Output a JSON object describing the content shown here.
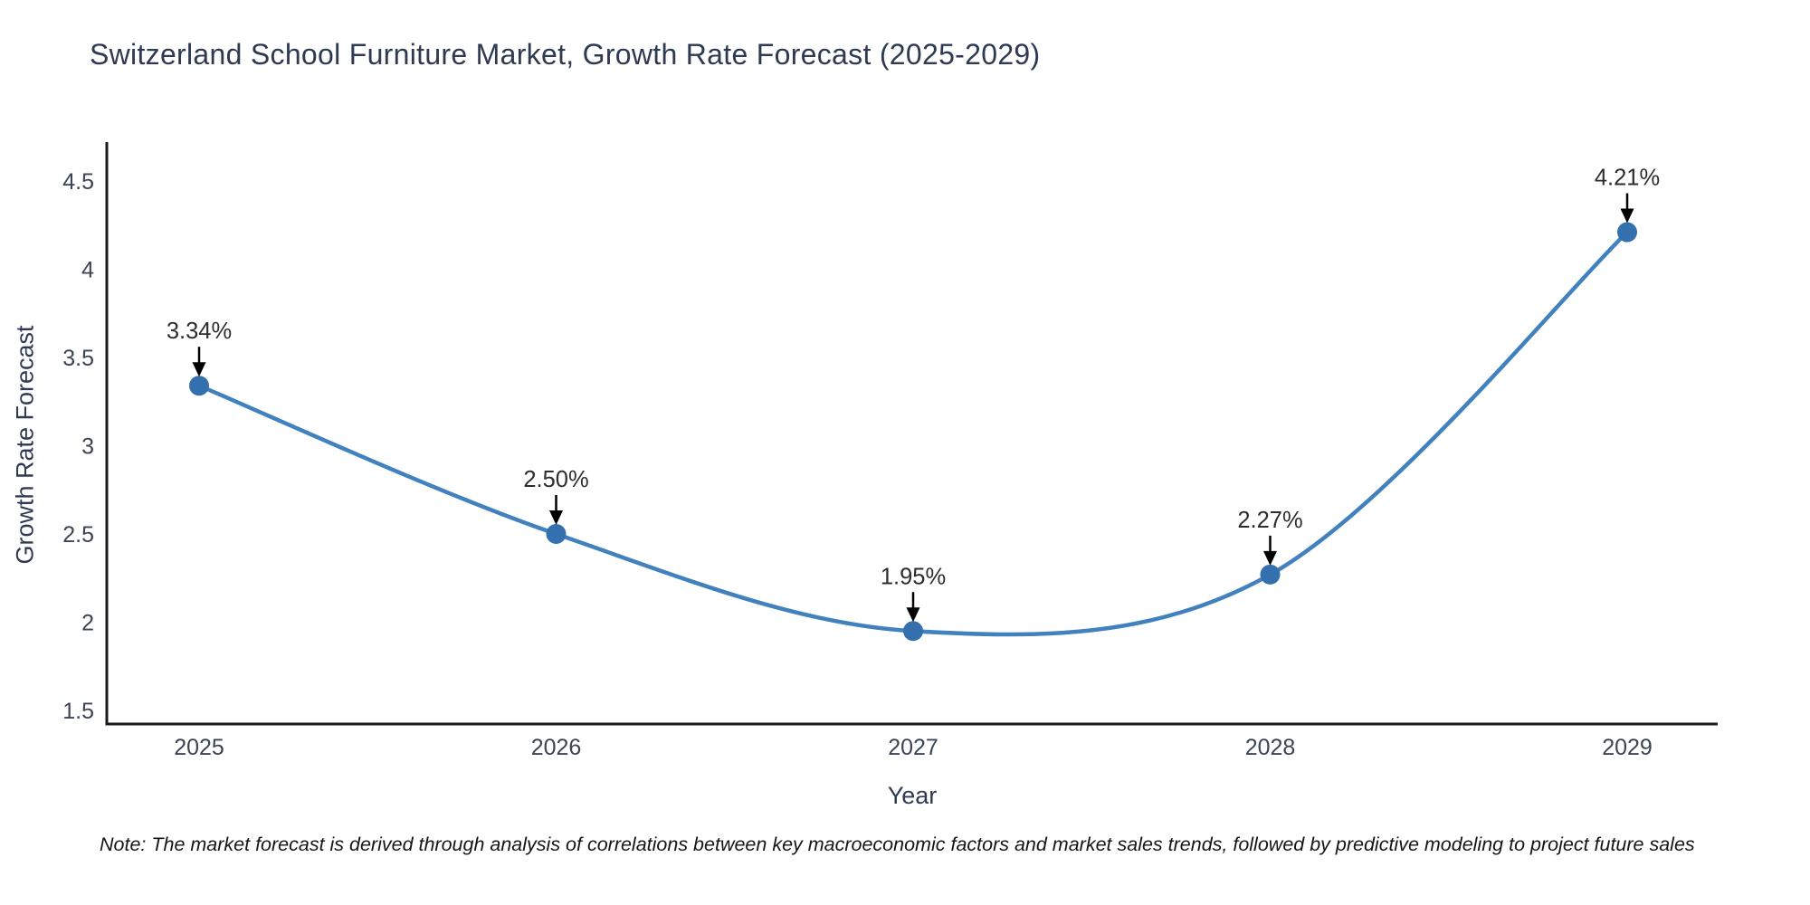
{
  "title": "Switzerland School Furniture Market, Growth Rate Forecast (2025-2029)",
  "note": "Note: The market forecast is derived through analysis of correlations between key macroeconomic factors and market sales trends, followed by predictive modeling to project future sales",
  "chart_data": {
    "type": "line",
    "title": "Switzerland School Furniture Market, Growth Rate Forecast (2025-2029)",
    "xlabel": "Year",
    "ylabel": "Growth Rate Forecast",
    "categories": [
      "2025",
      "2026",
      "2027",
      "2028",
      "2029"
    ],
    "series": [
      {
        "name": "Growth Rate Forecast",
        "values": [
          3.34,
          2.5,
          1.95,
          2.27,
          4.21
        ],
        "point_labels": [
          "3.34%",
          "2.50%",
          "1.95%",
          "2.27%",
          "4.21%"
        ]
      }
    ],
    "ylim": [
      1.5,
      4.5
    ],
    "yticks": [
      4.5,
      4,
      3.5,
      3,
      2.5,
      2,
      1.5
    ],
    "line_shape": "spline",
    "markers": true,
    "grid": false,
    "legend": "none",
    "annotations_style": "value label with down arrow above each point",
    "colors": {
      "line": "#4181bd",
      "marker": "#3570ae",
      "axis": "#1a1a1a",
      "tick_text": "#3a4454",
      "title_text": "#2e3a52",
      "annotation_text": "#2d2d2d",
      "arrow": "#000000",
      "background": "#ffffff"
    }
  }
}
